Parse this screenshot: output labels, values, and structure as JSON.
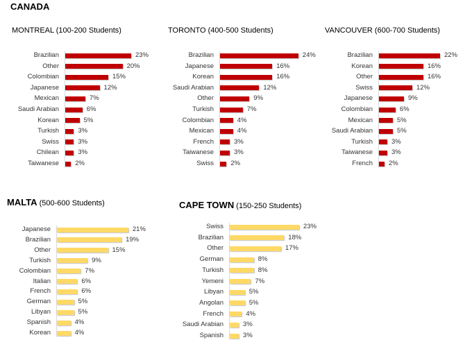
{
  "heading": "CANADA",
  "colors": {
    "canada": "#c00000",
    "other": "#ffd966"
  },
  "chart_data": [
    {
      "type": "bar",
      "orientation": "horizontal",
      "title": "MONTREAL (100-200 Students)",
      "title_bold": "",
      "title_rest": "MONTREAL (100-200 Students)",
      "categories": [
        "Brazilian",
        "Other",
        "Colombian",
        "Japanese",
        "Mexican",
        "Saudi Arabian",
        "Korean",
        "Turkish",
        "Swiss",
        "Chilean",
        "Taiwanese"
      ],
      "values": [
        23,
        20,
        15,
        12,
        7,
        6,
        5,
        3,
        3,
        3,
        2
      ],
      "labels": [
        "23%",
        "20%",
        "15%",
        "12%",
        "7%",
        "6%",
        "5%",
        "3%",
        "3%",
        "3%",
        "2%"
      ],
      "color": "#c00000"
    },
    {
      "type": "bar",
      "orientation": "horizontal",
      "title": "TORONTO (400-500 Students)",
      "title_bold": "",
      "title_rest": "TORONTO (400-500 Students)",
      "categories": [
        "Brazilian",
        "Japanese",
        "Korean",
        "Saudi Arabian",
        "Other",
        "Turkish",
        "Colombian",
        "Mexican",
        "French",
        "Taiwanese",
        "Swiss"
      ],
      "values": [
        24,
        16,
        16,
        12,
        9,
        7,
        4,
        4,
        3,
        3,
        2
      ],
      "labels": [
        "24%",
        "16%",
        "16%",
        "12%",
        "9%",
        "7%",
        "4%",
        "4%",
        "3%",
        "3%",
        "2%"
      ],
      "color": "#c00000"
    },
    {
      "type": "bar",
      "orientation": "horizontal",
      "title": "VANCOUVER (600-700 Students)",
      "title_bold": "",
      "title_rest": "VANCOUVER (600-700 Students)",
      "categories": [
        "Brazilian",
        "Korean",
        "Other",
        "Swiss",
        "Japanese",
        "Colombian",
        "Mexican",
        "Saudi Arabian",
        "Turkish",
        "Taiwanese",
        "French"
      ],
      "values": [
        22,
        16,
        16,
        12,
        9,
        6,
        5,
        5,
        3,
        3,
        2
      ],
      "labels": [
        "22%",
        "16%",
        "16%",
        "12%",
        "9%",
        "6%",
        "5%",
        "5%",
        "3%",
        "3%",
        "2%"
      ],
      "color": "#c00000"
    },
    {
      "type": "bar",
      "orientation": "horizontal",
      "title": "MALTA (500-600 Students)",
      "title_bold": "MALTA",
      "title_rest": " (500-600 Students)",
      "categories": [
        "Japanese",
        "Brazilian",
        "Other",
        "Turkish",
        "Colombian",
        "Italian",
        "French",
        "German",
        "Libyan",
        "Spanish",
        "Korean"
      ],
      "values": [
        21,
        19,
        15,
        9,
        7,
        6,
        6,
        5,
        5,
        4,
        4
      ],
      "labels": [
        "21%",
        "19%",
        "15%",
        "9%",
        "7%",
        "6%",
        "6%",
        "5%",
        "5%",
        "4%",
        "4%"
      ],
      "color": "#ffd966"
    },
    {
      "type": "bar",
      "orientation": "horizontal",
      "title": "CAPE TOWN (150-250 Students)",
      "title_bold": "CAPE TOWN",
      "title_rest": " (150-250 Students)",
      "categories": [
        "Swiss",
        "Brazilian",
        "Other",
        "German",
        "Turkish",
        "Yemeni",
        "Libyan",
        "Angolan",
        "French",
        "Saudi Arabian",
        "Spanish"
      ],
      "values": [
        23,
        18,
        17,
        8,
        8,
        7,
        5,
        5,
        4,
        3,
        3
      ],
      "labels": [
        "23%",
        "18%",
        "17%",
        "8%",
        "8%",
        "7%",
        "5%",
        "5%",
        "4%",
        "3%",
        "3%"
      ],
      "color": "#ffd966"
    }
  ]
}
